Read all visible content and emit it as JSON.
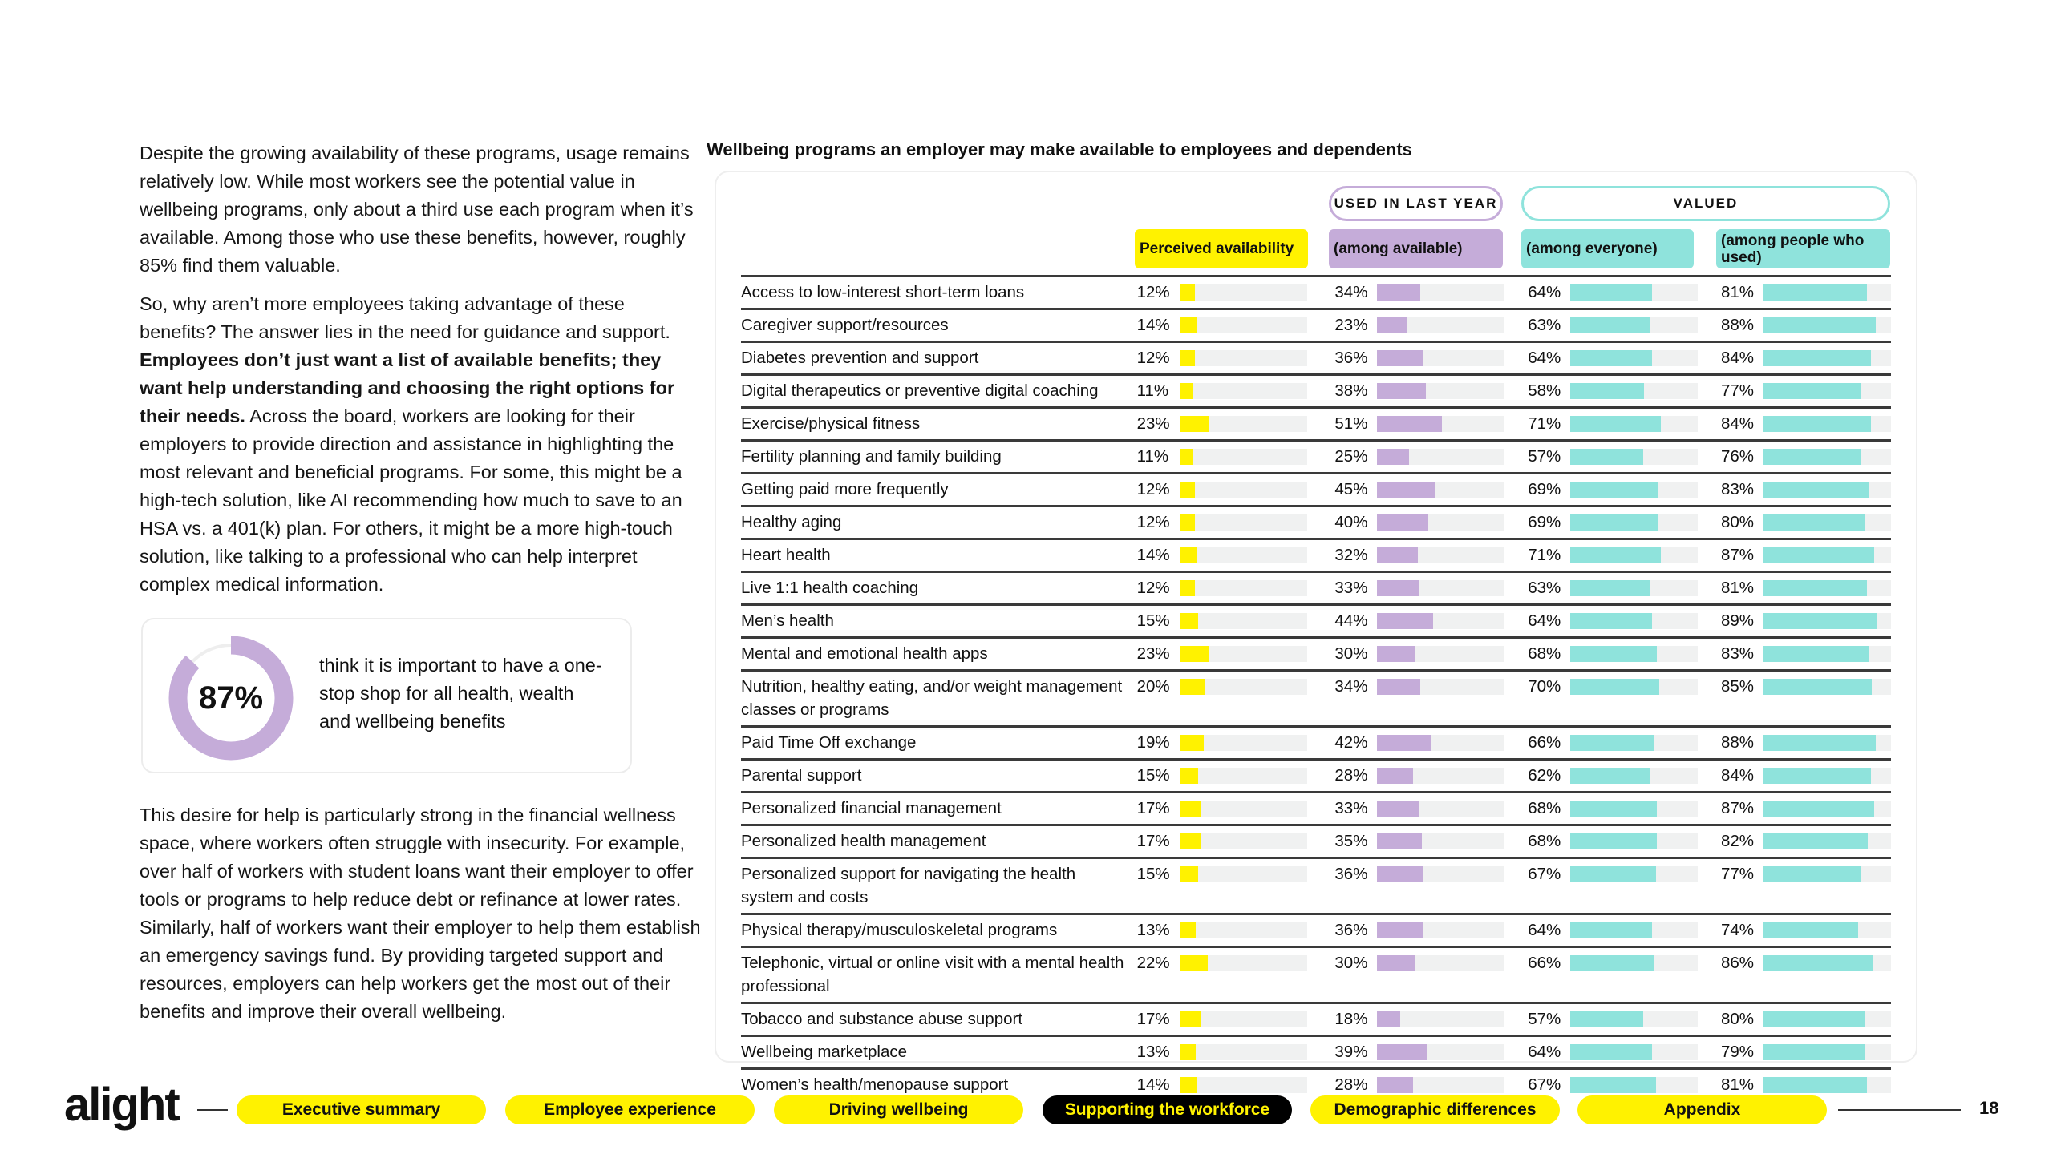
{
  "left": {
    "paragraph1": "Despite the growing availability of these programs, usage remains relatively low. While most workers see the potential value in wellbeing programs, only about a third use each program when it’s available. Among those who use these benefits, however, roughly 85% find them valuable.",
    "paragraph2_start": "So, why aren’t more employees taking advantage of these benefits? The answer lies in the need for guidance and support. ",
    "paragraph2_bold": "Employees don’t just want a list of available benefits; they want help understanding and choosing the right options for their needs.",
    "paragraph2_end": " Across the board, workers are looking for their employers to provide direction and assistance in highlighting the most relevant and beneficial programs. For some, this might be a high-tech solution, like AI recommending how much to save to an HSA vs. a 401(k) plan. For others, it might be a more high-touch solution, like talking to a professional who can help interpret complex medical information.",
    "callout": {
      "value": "87%",
      "percent": 87,
      "text": "think it is important to have a one-stop shop for all health, wealth and wellbeing benefits"
    },
    "paragraph3": "This desire for help is particularly strong in the financial wellness space, where workers often struggle with insecurity. For example, over half of workers with student loans want their employer to offer tools or programs to help reduce debt or refinance at lower rates. Similarly, half of workers want their employer to help them establish an emergency savings fund. By providing targeted support and resources, employers can help workers get the most out of their benefits and improve their overall wellbeing."
  },
  "chart_data": {
    "type": "table",
    "title": "Wellbeing programs an employer may make available to employees and dependents",
    "group_headers": [
      "USED IN LAST YEAR",
      "VALUED"
    ],
    "columns": [
      "Perceived availability",
      "(among available)",
      "(among everyone)",
      "(among people who used)"
    ],
    "colors": [
      "#fff200",
      "#c5acd9",
      "#8fe3dc",
      "#8fe3dc"
    ],
    "ylim": [
      0,
      100
    ],
    "rows": [
      {
        "label": "Access to low-interest short-term loans",
        "values": [
          12,
          34,
          64,
          81
        ]
      },
      {
        "label": "Caregiver support/resources",
        "values": [
          14,
          23,
          63,
          88
        ]
      },
      {
        "label": "Diabetes prevention and support",
        "values": [
          12,
          36,
          64,
          84
        ]
      },
      {
        "label": "Digital therapeutics or preventive digital coaching",
        "values": [
          11,
          38,
          58,
          77
        ]
      },
      {
        "label": "Exercise/physical fitness",
        "values": [
          23,
          51,
          71,
          84
        ]
      },
      {
        "label": "Fertility planning and family building",
        "values": [
          11,
          25,
          57,
          76
        ]
      },
      {
        "label": "Getting paid more frequently",
        "values": [
          12,
          45,
          69,
          83
        ]
      },
      {
        "label": "Healthy aging",
        "values": [
          12,
          40,
          69,
          80
        ]
      },
      {
        "label": "Heart health",
        "values": [
          14,
          32,
          71,
          87
        ]
      },
      {
        "label": "Live 1:1 health coaching",
        "values": [
          12,
          33,
          63,
          81
        ]
      },
      {
        "label": "Men’s health",
        "values": [
          15,
          44,
          64,
          89
        ]
      },
      {
        "label": "Mental and emotional health apps",
        "values": [
          23,
          30,
          68,
          83
        ]
      },
      {
        "label": "Nutrition, healthy eating, and/or weight management classes or programs",
        "values": [
          20,
          34,
          70,
          85
        ]
      },
      {
        "label": "Paid Time Off exchange",
        "values": [
          19,
          42,
          66,
          88
        ]
      },
      {
        "label": "Parental support",
        "values": [
          15,
          28,
          62,
          84
        ]
      },
      {
        "label": "Personalized financial management",
        "values": [
          17,
          33,
          68,
          87
        ]
      },
      {
        "label": "Personalized health management",
        "values": [
          17,
          35,
          68,
          82
        ]
      },
      {
        "label": "Personalized support for navigating the health system and costs",
        "values": [
          15,
          36,
          67,
          77
        ]
      },
      {
        "label": "Physical therapy/musculoskeletal programs",
        "values": [
          13,
          36,
          64,
          74
        ]
      },
      {
        "label": "Telephonic, virtual or online visit with a mental health professional",
        "values": [
          22,
          30,
          66,
          86
        ]
      },
      {
        "label": "Tobacco and substance abuse support",
        "values": [
          17,
          18,
          57,
          80
        ]
      },
      {
        "label": "Wellbeing marketplace",
        "values": [
          13,
          39,
          64,
          79
        ]
      },
      {
        "label": "Women’s health/menopause support",
        "values": [
          14,
          28,
          67,
          81
        ]
      }
    ]
  },
  "footer": {
    "logo": "alight",
    "nav": [
      "Executive summary",
      "Employee experience",
      "Driving wellbeing",
      "Supporting the workforce",
      "Demographic differences",
      "Appendix"
    ],
    "active_index": 3,
    "page_number": "18"
  }
}
